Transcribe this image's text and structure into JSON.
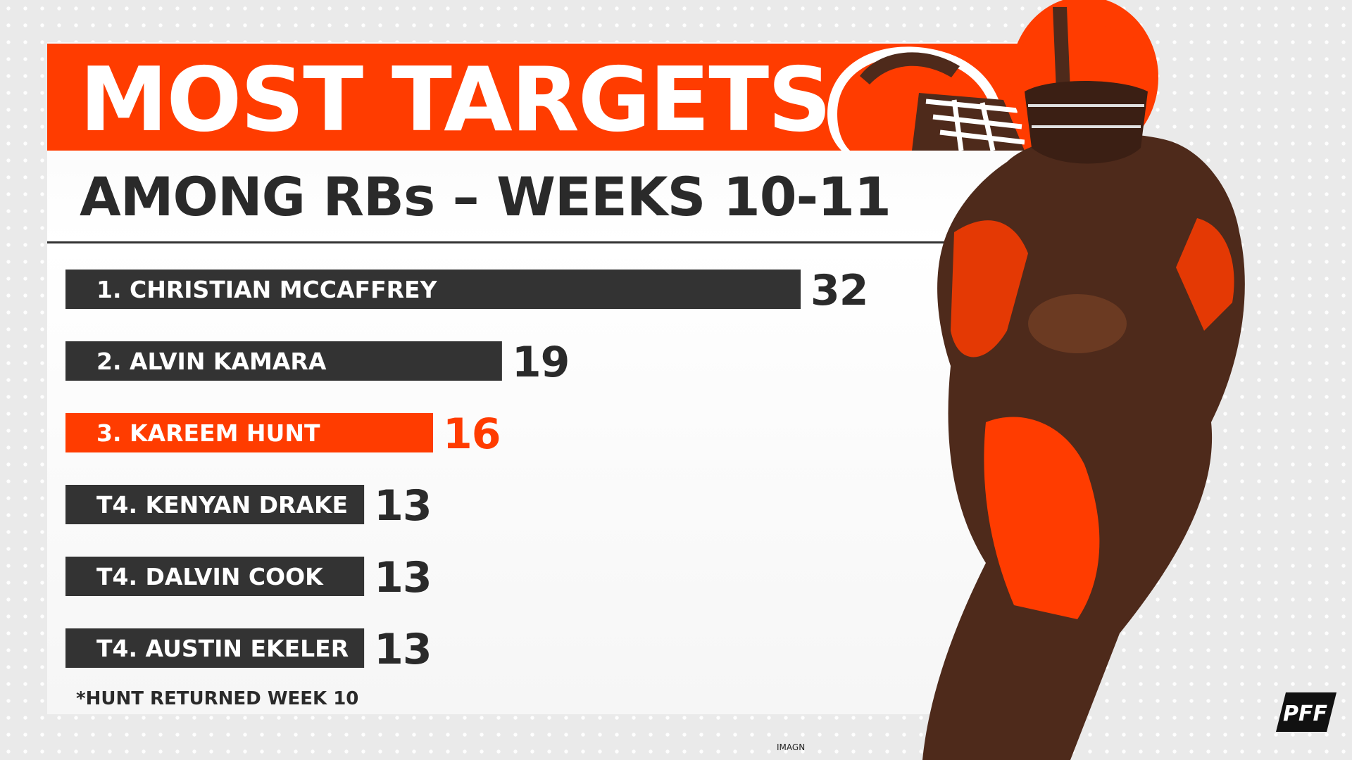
{
  "header": {
    "title": "MOST TARGETS",
    "subtitle": "AMONG RBs – WEEKS 10-11"
  },
  "footnote": "*HUNT RETURNED WEEK 10",
  "credits": {
    "photo": "IMAGN",
    "brand": "PFF"
  },
  "icons": {
    "team_logo": "browns-helmet-icon",
    "player_photo": "player-photo",
    "brand_logo": "pff-logo"
  },
  "colors": {
    "accent": "#ff3c00",
    "bar_default": "#333333",
    "bar_highlight": "#ff3c00",
    "value_default": "#2a2a2a",
    "value_highlight": "#ff3c00",
    "brand_brown": "#4e2a1b"
  },
  "chart_data": {
    "type": "bar",
    "orientation": "horizontal",
    "title": "MOST TARGETS",
    "subtitle": "AMONG RBs – WEEKS 10-11",
    "categories": [
      "1. CHRISTIAN MCCAFFREY",
      "2. ALVIN KAMARA",
      "3. KAREEM HUNT",
      "T4. KENYAN DRAKE",
      "T4. DALVIN COOK",
      "T4. AUSTIN EKELER"
    ],
    "values": [
      32,
      19,
      16,
      13,
      13,
      13
    ],
    "value_labels": [
      "32",
      "19",
      "16",
      "13",
      "13",
      "13"
    ],
    "highlight": "3. KAREEM HUNT",
    "xlim": [
      0,
      32
    ],
    "grid": false,
    "legend": "none",
    "xlabel": "",
    "ylabel": ""
  }
}
